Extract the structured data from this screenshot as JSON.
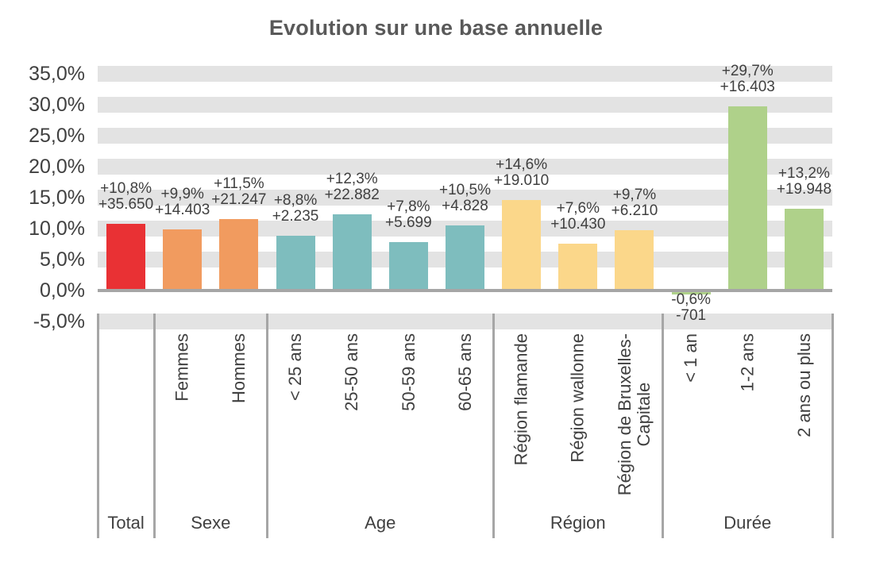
{
  "title": "Evolution sur une base annuelle",
  "chart_data": {
    "type": "bar",
    "title": "Evolution sur une base annuelle",
    "xlabel": "",
    "ylabel": "",
    "legend": "none",
    "grid": "thick-horizontal-gray-bands",
    "y_axis": {
      "min": -5,
      "max": 35,
      "step": 5,
      "unit": "%",
      "ticks": [
        {
          "value": 35,
          "label": "35,0%"
        },
        {
          "value": 30,
          "label": "30,0%"
        },
        {
          "value": 25,
          "label": "25,0%"
        },
        {
          "value": 20,
          "label": "20,0%"
        },
        {
          "value": 15,
          "label": "15,0%"
        },
        {
          "value": 10,
          "label": "10,0%"
        },
        {
          "value": 5,
          "label": "5,0%"
        },
        {
          "value": 0,
          "label": "0,0%"
        },
        {
          "value": -5,
          "label": "-5,0%"
        }
      ]
    },
    "colors": {
      "band": "#E3E3E3",
      "axis": "#A6A6A6",
      "separator": "#A6A6A6",
      "text": "#404040",
      "title_text": "#595959"
    },
    "groups": [
      {
        "label": "Total",
        "color": "#E93134",
        "bars": [
          {
            "category": "",
            "category_display": "",
            "pct": 10.8,
            "count": 35650,
            "pct_label": "+10,8%",
            "count_label": "+35.650",
            "value_display": "+10,8%\n+35.650"
          }
        ]
      },
      {
        "label": "Sexe",
        "color": "#F19B5F",
        "bars": [
          {
            "category": "Femmes",
            "category_display": "Femmes",
            "pct": 9.9,
            "count": 14403,
            "pct_label": "+9,9%",
            "count_label": "+14.403",
            "value_display": "+9,9%\n+14.403"
          },
          {
            "category": "Hommes",
            "category_display": "Hommes",
            "pct": 11.5,
            "count": 21247,
            "pct_label": "+11,5%",
            "count_label": "+21.247",
            "value_display": "+11,5%\n+21.247"
          }
        ]
      },
      {
        "label": "Age",
        "color": "#7EBDBE",
        "bars": [
          {
            "category": "< 25 ans",
            "category_display": "< 25 ans",
            "pct": 8.8,
            "count": 2235,
            "pct_label": "+8,8%",
            "count_label": "+2.235",
            "value_display": "+8,8%\n+2.235"
          },
          {
            "category": "25-50 ans",
            "category_display": "25-50 ans",
            "pct": 12.3,
            "count": 22882,
            "pct_label": "+12,3%",
            "count_label": "+22.882",
            "value_display": "+12,3%\n+22.882"
          },
          {
            "category": "50-59 ans",
            "category_display": "50-59 ans",
            "pct": 7.8,
            "count": 5699,
            "pct_label": "+7,8%",
            "count_label": "+5.699",
            "value_display": "+7,8%\n+5.699"
          },
          {
            "category": "60-65 ans",
            "category_display": "60-65 ans",
            "pct": 10.5,
            "count": 4828,
            "pct_label": "+10,5%",
            "count_label": "+4.828",
            "value_display": "+10,5%\n+4.828"
          }
        ]
      },
      {
        "label": "Région",
        "color": "#FBD78A",
        "bars": [
          {
            "category": "Région flamande",
            "category_display": "Région flamande",
            "pct": 14.6,
            "count": 19010,
            "pct_label": "+14,6%",
            "count_label": "+19.010",
            "value_display": "+14,6%\n+19.010"
          },
          {
            "category": "Région wallonne",
            "category_display": "Région wallonne",
            "pct": 7.6,
            "count": 10430,
            "pct_label": "+7,6%",
            "count_label": "+10.430",
            "value_display": "+7,6%\n+10.430"
          },
          {
            "category": "Région de Bruxelles-Capitale",
            "category_display": "Région de Bruxelles-\nCapitale",
            "pct": 9.7,
            "count": 6210,
            "pct_label": "+9,7%",
            "count_label": "+6.210",
            "value_display": "+9,7%\n+6.210"
          }
        ]
      },
      {
        "label": "Durée",
        "color": "#AFD18A",
        "bars": [
          {
            "category": "< 1 an",
            "category_display": "< 1 an",
            "pct": -0.6,
            "count": -701,
            "pct_label": "-0,6%",
            "count_label": "-701",
            "value_display": "-0,6%\n-701"
          },
          {
            "category": "1-2 ans",
            "category_display": "1-2 ans",
            "pct": 29.7,
            "count": 16403,
            "pct_label": "+29,7%",
            "count_label": "+16.403",
            "value_display": "+29,7%\n+16.403"
          },
          {
            "category": "2 ans ou plus",
            "category_display": "2 ans ou plus",
            "pct": 13.2,
            "count": 19948,
            "pct_label": "+13,2%",
            "count_label": "+19.948",
            "value_display": "+13,2%\n+19.948"
          }
        ]
      }
    ]
  }
}
